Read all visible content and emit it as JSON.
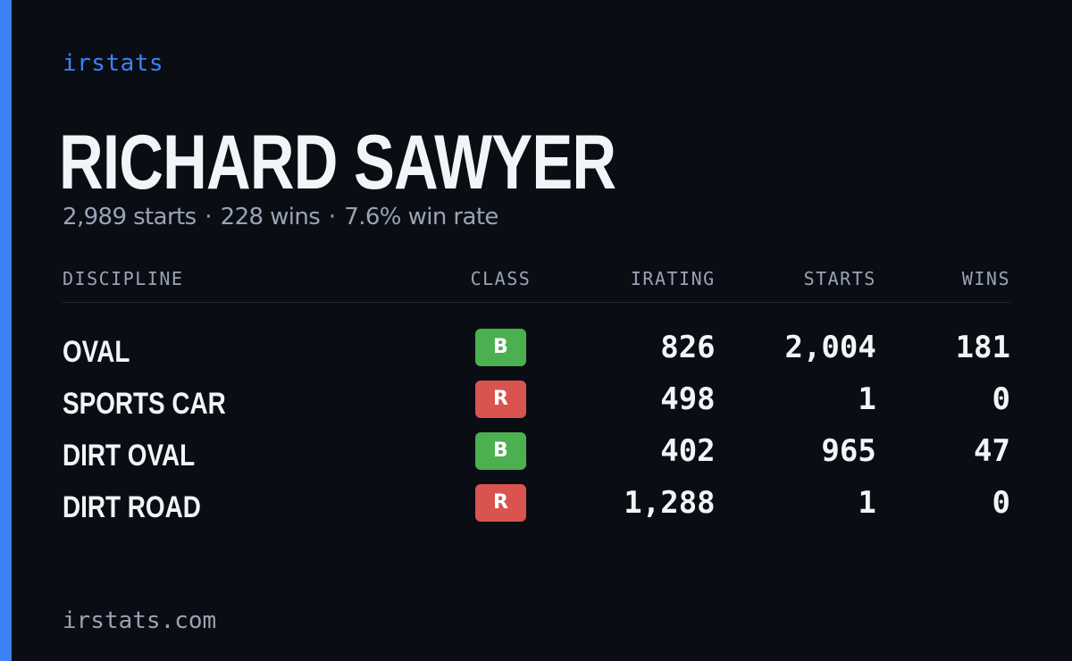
{
  "brand": "irstats",
  "driver": {
    "name": "RICHARD SAWYER",
    "starts_text": "2,989 starts",
    "wins_text": "228 wins",
    "win_rate_text": "7.6% win rate",
    "separator": "·"
  },
  "table": {
    "headers": {
      "discipline": "DISCIPLINE",
      "class": "CLASS",
      "irating": "IRATING",
      "starts": "STARTS",
      "wins": "WINS"
    },
    "rows": [
      {
        "discipline": "OVAL",
        "class": "B",
        "irating": "826",
        "starts": "2,004",
        "wins": "181"
      },
      {
        "discipline": "SPORTS CAR",
        "class": "R",
        "irating": "498",
        "starts": "1",
        "wins": "0"
      },
      {
        "discipline": "DIRT OVAL",
        "class": "B",
        "irating": "402",
        "starts": "965",
        "wins": "47"
      },
      {
        "discipline": "DIRT ROAD",
        "class": "R",
        "irating": "1,288",
        "starts": "1",
        "wins": "0"
      }
    ]
  },
  "class_colors": {
    "B": "#4caf50",
    "R": "#d9534f"
  },
  "colors": {
    "accent": "#3b82f6",
    "background": "#0a0d14",
    "muted": "#9aa3b4"
  },
  "footer": "irstats.com"
}
